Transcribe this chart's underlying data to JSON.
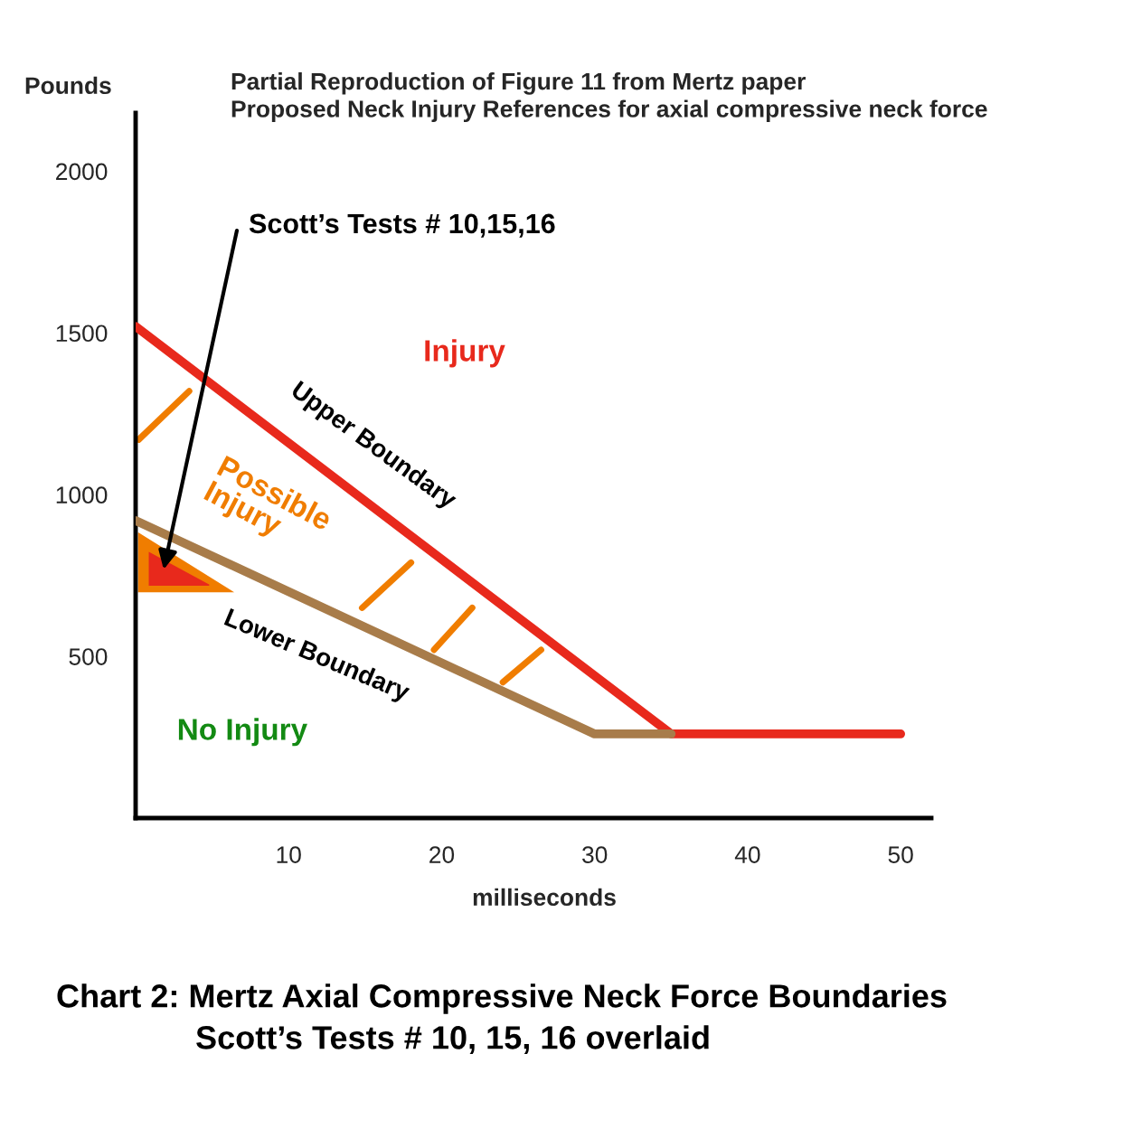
{
  "chart_data": {
    "type": "line",
    "title": "Partial Reproduction of Figure 11 from Mertz paper\nProposed Neck Injury References for axial compressive neck force",
    "ylabel": "Pounds",
    "xlabel": "milliseconds",
    "series": [
      {
        "name": "Upper Boundary",
        "color": "#e8291c",
        "x": [
          0,
          35,
          50
        ],
        "values": [
          1520,
          260,
          260
        ]
      },
      {
        "name": "Lower Boundary",
        "color": "#a87c4a",
        "x": [
          0,
          30,
          35
        ],
        "values": [
          920,
          260,
          260
        ]
      }
    ],
    "xlim": [
      0,
      52
    ],
    "ylim": [
      0,
      2180
    ],
    "xticks": [
      10,
      20,
      30,
      40,
      50
    ],
    "yticks": [
      500,
      1000,
      1500,
      2000
    ],
    "grid": false,
    "legend": false,
    "marker": "none",
    "line_style": "solid",
    "annotations": [
      "Injury",
      "Possible\nInjury",
      "No Injury",
      "Scott’s Tests # 10,15,16",
      "Chart 2: Mertz Axial Compressive Neck Force Boundaries",
      "Scott’s Tests # 10, 15, 16 overlaid"
    ]
  }
}
